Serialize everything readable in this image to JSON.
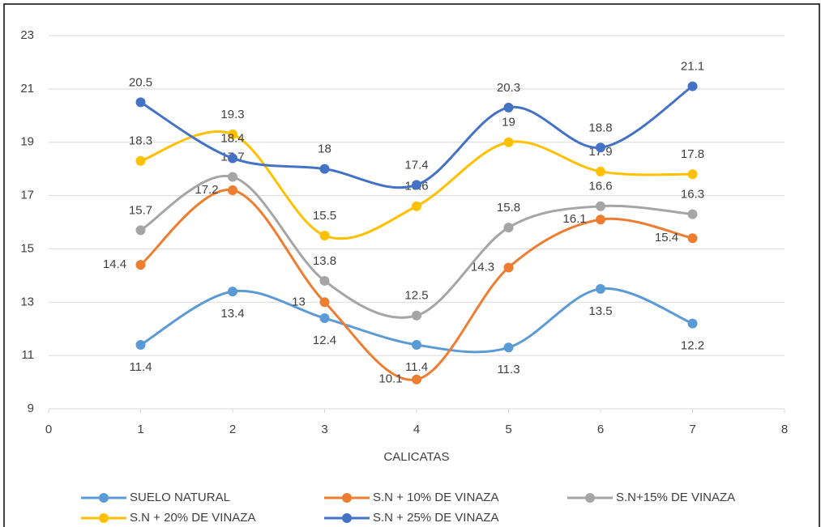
{
  "chart_data": {
    "type": "line",
    "x_label": "CALICATAS",
    "x": [
      1,
      2,
      3,
      4,
      5,
      6,
      7
    ],
    "series": [
      {
        "name": "SUELO NATURAL",
        "color": "#5b9bd5",
        "values": [
          11.4,
          13.4,
          12.4,
          11.4,
          11.3,
          13.5,
          12.2
        ]
      },
      {
        "name": "S.N + 10% DE VINAZA",
        "color": "#ed7d31",
        "values": [
          14.4,
          17.2,
          13,
          10.1,
          14.3,
          16.1,
          15.4
        ]
      },
      {
        "name": "S.N+15% DE VINAZA",
        "color": "#a5a5a5",
        "values": [
          15.7,
          17.7,
          13.8,
          12.5,
          15.8,
          16.6,
          16.3
        ]
      },
      {
        "name": "S.N + 20% DE VINAZA",
        "color": "#ffc000",
        "values": [
          18.3,
          19.3,
          15.5,
          16.6,
          19,
          17.9,
          17.8
        ]
      },
      {
        "name": "S.N + 25% DE VINAZA",
        "color": "#4472c4",
        "values": [
          20.5,
          18.4,
          18,
          17.4,
          20.3,
          18.8,
          21.1
        ]
      }
    ],
    "xlim": [
      0,
      8
    ],
    "xticks": [
      0,
      1,
      2,
      3,
      4,
      5,
      6,
      7,
      8
    ],
    "ylim": [
      9,
      23
    ],
    "yticks": [
      9,
      11,
      13,
      15,
      17,
      19,
      21,
      23
    ],
    "grid": true,
    "legend": "bottom",
    "smooth": true
  }
}
